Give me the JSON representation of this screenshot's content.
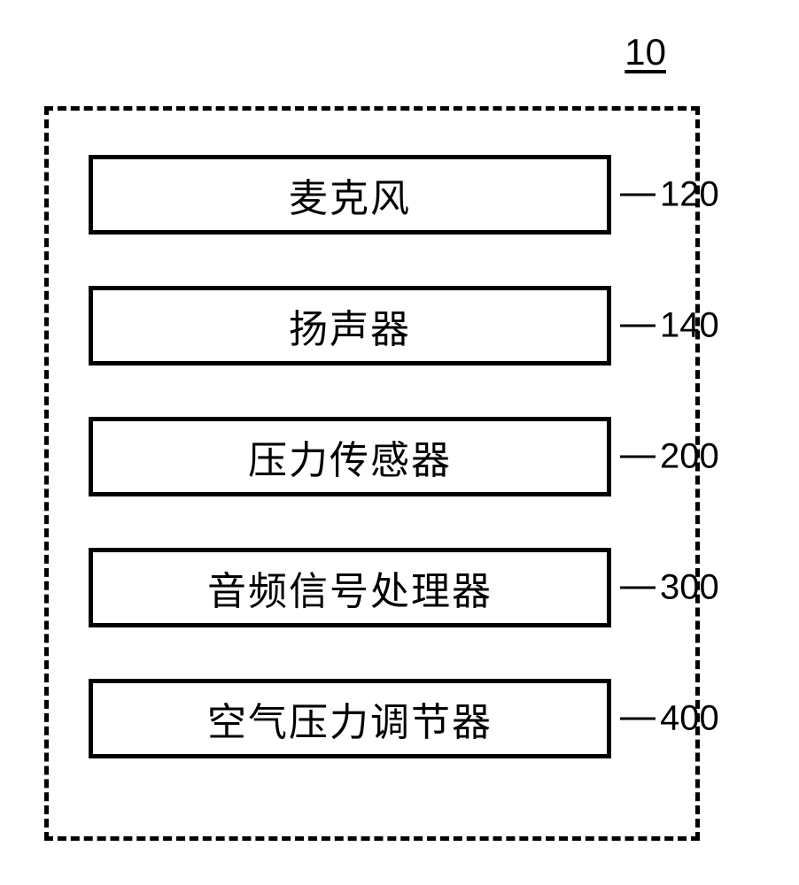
{
  "diagram": {
    "system_ref": "10",
    "border_style": "dashed",
    "border_color": "#000000",
    "border_width": 5,
    "background_color": "#ffffff",
    "block_border_color": "#000000",
    "block_border_width": 5,
    "text_color": "#000000",
    "label_fontsize": 44,
    "ref_fontsize": 40,
    "system_label_fontsize": 42,
    "block_width": 590,
    "block_height": 90,
    "block_spacing": 58,
    "blocks": [
      {
        "label": "麦克风",
        "ref": "120"
      },
      {
        "label": "扬声器",
        "ref": "140"
      },
      {
        "label": "压力传感器",
        "ref": "200"
      },
      {
        "label": "音频信号处理器",
        "ref": "300"
      },
      {
        "label": "空气压力调节器",
        "ref": "400"
      }
    ]
  }
}
